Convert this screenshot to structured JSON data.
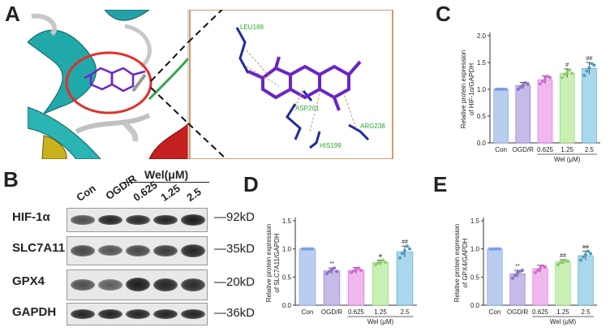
{
  "panels": {
    "a": {
      "letter": "A",
      "residues": [
        "LEU188",
        "ASP201",
        "ARG238",
        "HIS199"
      ]
    },
    "b": {
      "letter": "B",
      "lanes": [
        "Con",
        "OGD/R",
        "0.625",
        "1.25",
        "2.5"
      ],
      "treatment_label": "Wel(μM)",
      "blots": [
        {
          "protein": "HIF-1α",
          "kd": "—92kD",
          "intensity": [
            0.55,
            0.85,
            0.8,
            0.85,
            0.9
          ]
        },
        {
          "protein": "SLC7A11",
          "kd": "—35kD",
          "intensity": [
            0.6,
            0.5,
            0.6,
            0.7,
            0.85
          ]
        },
        {
          "protein": "GPX4",
          "kd": "—20kD",
          "intensity": [
            0.55,
            0.45,
            0.9,
            0.85,
            0.8
          ]
        },
        {
          "protein": "GAPDH",
          "kd": "—36kD",
          "intensity": [
            0.85,
            0.85,
            0.85,
            0.85,
            0.85
          ]
        }
      ]
    },
    "c": {
      "letter": "C"
    },
    "d": {
      "letter": "D"
    },
    "e": {
      "letter": "E"
    }
  },
  "colors": {
    "bars": [
      "#b9cdf0",
      "#c7b9e8",
      "#f0b8ee",
      "#c8f0b4",
      "#a9d8ec"
    ],
    "dots": [
      "#7aa0e6",
      "#8b70c8",
      "#d36ad6",
      "#8fce6a",
      "#4a9dc0"
    ],
    "docking_border": "#c87a3c",
    "circle": "#e0302a"
  },
  "chart_data": [
    {
      "panel": "C",
      "type": "bar",
      "categories": [
        "Con",
        "OGD/R",
        "0.625",
        "1.25",
        "2.5"
      ],
      "values": [
        1.0,
        1.07,
        1.18,
        1.3,
        1.39
      ],
      "errors": [
        0.02,
        0.06,
        0.07,
        0.08,
        0.11
      ],
      "points": [
        [
          1.0,
          1.0,
          1.0,
          1.0,
          1.0
        ],
        [
          1.0,
          1.04,
          1.08,
          1.12,
          1.1
        ],
        [
          1.1,
          1.15,
          1.2,
          1.24,
          1.22
        ],
        [
          1.22,
          1.28,
          1.32,
          1.36,
          1.3
        ],
        [
          1.26,
          1.34,
          1.4,
          1.48,
          1.45
        ]
      ],
      "annotations": [
        "",
        "",
        "",
        "#",
        "##"
      ],
      "ylabel": "Relative protein expression\nof HIF-1α/GAPDH",
      "xlabel": "Wel (μM)",
      "ylim": [
        0,
        2.0
      ],
      "yticks": [
        "0.0",
        "0.5",
        "1.0",
        "1.5",
        "2.0"
      ]
    },
    {
      "panel": "D",
      "type": "bar",
      "categories": [
        "Con",
        "OGD/R",
        "0.625",
        "1.25",
        "2.5"
      ],
      "values": [
        1.0,
        0.61,
        0.62,
        0.76,
        0.95
      ],
      "errors": [
        0.01,
        0.05,
        0.05,
        0.04,
        0.1
      ],
      "points": [
        [
          1.0,
          1.0,
          1.0,
          1.0,
          1.0
        ],
        [
          0.56,
          0.6,
          0.63,
          0.66,
          0.6
        ],
        [
          0.58,
          0.61,
          0.64,
          0.66,
          0.62
        ],
        [
          0.72,
          0.75,
          0.77,
          0.8,
          0.76
        ],
        [
          0.84,
          0.92,
          0.97,
          1.05,
          1.0
        ]
      ],
      "annotations": [
        "",
        "**",
        "",
        "#",
        "##"
      ],
      "ylabel": "Relative protein expression\nof SLC7A11/GAPDH",
      "xlabel": "Wel (μM)",
      "ylim": [
        0,
        1.5
      ],
      "yticks": [
        "0.0",
        "0.5",
        "1.0",
        "1.5"
      ]
    },
    {
      "panel": "E",
      "type": "bar",
      "categories": [
        "Con",
        "OGD/R",
        "0.625",
        "1.25",
        "2.5"
      ],
      "values": [
        1.0,
        0.56,
        0.65,
        0.77,
        0.88
      ],
      "errors": [
        0.01,
        0.06,
        0.06,
        0.04,
        0.08
      ],
      "points": [
        [
          1.0,
          1.0,
          1.0,
          1.0,
          1.0
        ],
        [
          0.48,
          0.53,
          0.58,
          0.6,
          0.62
        ],
        [
          0.58,
          0.62,
          0.66,
          0.7,
          0.68
        ],
        [
          0.72,
          0.76,
          0.78,
          0.8,
          0.78
        ],
        [
          0.8,
          0.86,
          0.9,
          0.96,
          0.92
        ]
      ],
      "annotations": [
        "",
        "**",
        "",
        "##",
        "##"
      ],
      "ylabel": "Relative protein expression\nof GPX4/GAPDH",
      "xlabel": "Wel (μM)",
      "ylim": [
        0,
        1.5
      ],
      "yticks": [
        "0.0",
        "0.5",
        "1.0",
        "1.5"
      ]
    }
  ]
}
